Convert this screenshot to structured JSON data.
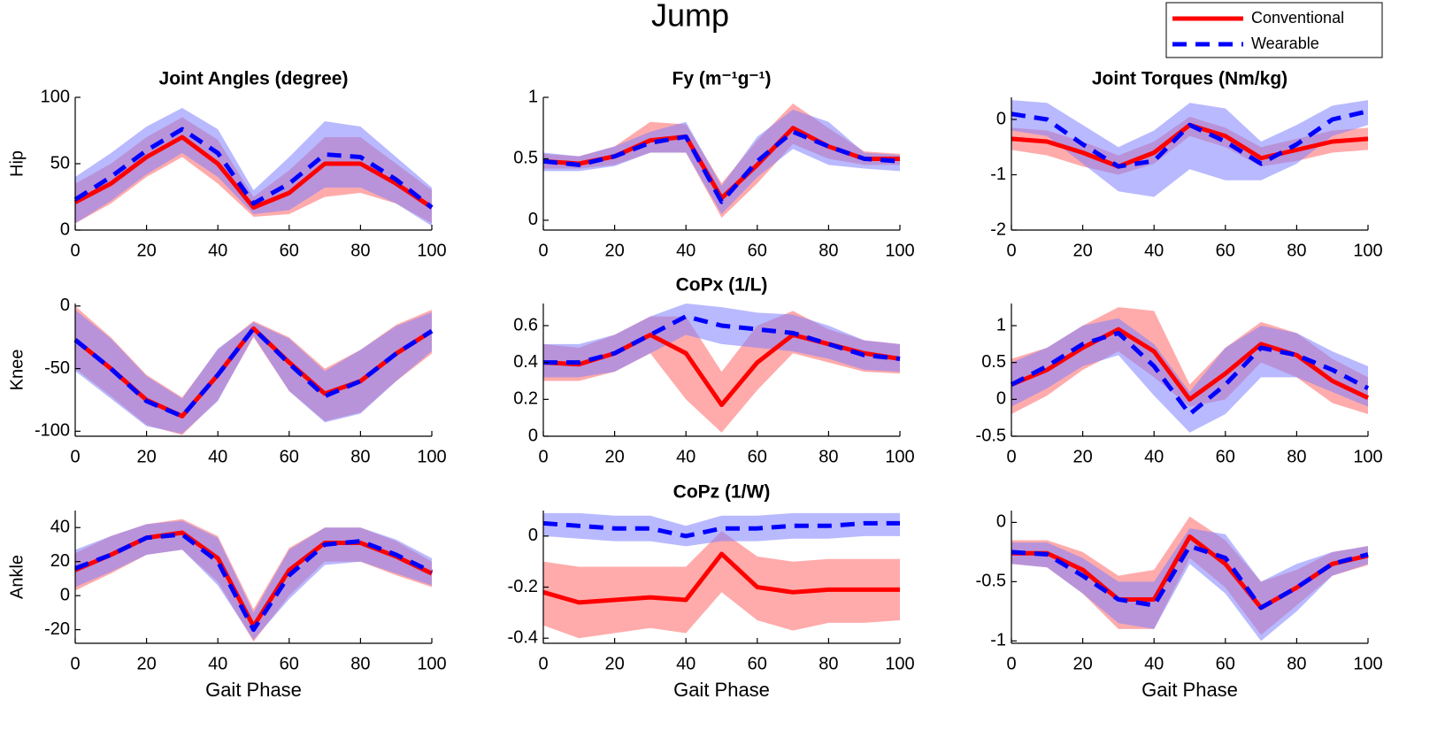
{
  "title": "Jump",
  "chart_data": [
    {
      "type": "line",
      "title": "Joint Angles (degree)",
      "ylabel": "Hip",
      "x": [
        0,
        10,
        20,
        30,
        40,
        50,
        60,
        70,
        80,
        90,
        100
      ],
      "xlim": [
        0,
        100
      ],
      "xticks": [
        0,
        20,
        40,
        60,
        80,
        100
      ],
      "ylim": [
        0,
        100
      ],
      "yticks": [
        0,
        50,
        100
      ],
      "series": [
        {
          "name": "Conventional",
          "color": "#ff0000",
          "linestyle": "solid",
          "values": [
            21,
            35,
            55,
            70,
            50,
            17,
            28,
            50,
            50,
            35,
            17
          ],
          "lower": [
            5,
            20,
            40,
            55,
            35,
            10,
            12,
            25,
            28,
            20,
            5
          ],
          "upper": [
            35,
            50,
            70,
            85,
            68,
            25,
            45,
            70,
            70,
            50,
            30
          ]
        },
        {
          "name": "Wearable",
          "color": "#0000ff",
          "linestyle": "dashed",
          "values": [
            23,
            40,
            60,
            76,
            58,
            20,
            35,
            57,
            55,
            38,
            17
          ],
          "lower": [
            5,
            22,
            42,
            58,
            40,
            12,
            15,
            32,
            32,
            20,
            3
          ],
          "upper": [
            40,
            58,
            78,
            92,
            76,
            30,
            55,
            82,
            78,
            55,
            32
          ]
        }
      ]
    },
    {
      "type": "line",
      "title": "Fy (m⁻¹g⁻¹)",
      "x": [
        0,
        10,
        20,
        30,
        40,
        50,
        60,
        70,
        80,
        90,
        100
      ],
      "xlim": [
        0,
        100
      ],
      "xticks": [
        0,
        20,
        40,
        60,
        80,
        100
      ],
      "ylim": [
        -0.08,
        1
      ],
      "yticks": [
        0,
        0.5,
        1
      ],
      "series": [
        {
          "name": "Conventional",
          "color": "#ff0000",
          "linestyle": "solid",
          "values": [
            0.48,
            0.46,
            0.52,
            0.65,
            0.68,
            0.18,
            0.45,
            0.75,
            0.6,
            0.5,
            0.5
          ],
          "lower": [
            0.42,
            0.42,
            0.45,
            0.55,
            0.55,
            0.02,
            0.3,
            0.62,
            0.5,
            0.45,
            0.45
          ],
          "upper": [
            0.54,
            0.52,
            0.6,
            0.8,
            0.78,
            0.3,
            0.65,
            0.95,
            0.75,
            0.56,
            0.54
          ]
        },
        {
          "name": "Wearable",
          "color": "#0000ff",
          "linestyle": "dashed",
          "values": [
            0.48,
            0.45,
            0.52,
            0.63,
            0.68,
            0.15,
            0.48,
            0.72,
            0.6,
            0.5,
            0.48
          ],
          "lower": [
            0.4,
            0.4,
            0.44,
            0.55,
            0.55,
            0.05,
            0.35,
            0.58,
            0.45,
            0.42,
            0.4
          ],
          "upper": [
            0.55,
            0.52,
            0.6,
            0.72,
            0.8,
            0.28,
            0.68,
            0.9,
            0.8,
            0.55,
            0.53
          ]
        }
      ]
    },
    {
      "type": "line",
      "title": "Joint Torques (Nm/kg)",
      "x": [
        0,
        10,
        20,
        30,
        40,
        50,
        60,
        70,
        80,
        90,
        100
      ],
      "xlim": [
        0,
        100
      ],
      "xticks": [
        0,
        20,
        40,
        60,
        80,
        100
      ],
      "ylim": [
        -2,
        0.4
      ],
      "yticks": [
        -2,
        -1,
        0
      ],
      "series": [
        {
          "name": "Conventional",
          "color": "#ff0000",
          "linestyle": "solid",
          "values": [
            -0.35,
            -0.4,
            -0.6,
            -0.85,
            -0.6,
            -0.1,
            -0.3,
            -0.7,
            -0.55,
            -0.4,
            -0.35
          ],
          "lower": [
            -0.55,
            -0.65,
            -0.85,
            -1.0,
            -0.8,
            -0.3,
            -0.5,
            -0.85,
            -0.75,
            -0.6,
            -0.55
          ],
          "upper": [
            -0.15,
            -0.2,
            -0.4,
            -0.65,
            -0.4,
            0.05,
            -0.15,
            -0.5,
            -0.35,
            -0.2,
            -0.15
          ]
        },
        {
          "name": "Wearable",
          "color": "#0000ff",
          "linestyle": "dashed",
          "values": [
            0.1,
            0.0,
            -0.45,
            -0.85,
            -0.75,
            -0.1,
            -0.4,
            -0.8,
            -0.45,
            0.0,
            0.15
          ],
          "lower": [
            -0.2,
            -0.3,
            -0.8,
            -1.3,
            -1.4,
            -0.9,
            -1.1,
            -1.1,
            -0.8,
            -0.3,
            -0.1
          ],
          "upper": [
            0.35,
            0.3,
            -0.1,
            -0.5,
            -0.2,
            0.3,
            0.2,
            -0.4,
            -0.1,
            0.25,
            0.35
          ]
        }
      ]
    },
    {
      "type": "line",
      "ylabel": "Knee",
      "x": [
        0,
        10,
        20,
        30,
        40,
        50,
        60,
        70,
        80,
        90,
        100
      ],
      "xlim": [
        0,
        100
      ],
      "xticks": [
        0,
        20,
        40,
        60,
        80,
        100
      ],
      "ylim": [
        -104,
        2
      ],
      "yticks": [
        -100,
        -50,
        0
      ],
      "series": [
        {
          "name": "Conventional",
          "color": "#ff0000",
          "linestyle": "solid",
          "values": [
            -27,
            -50,
            -75,
            -88,
            -55,
            -18,
            -45,
            -70,
            -60,
            -38,
            -20
          ],
          "lower": [
            -50,
            -72,
            -95,
            -103,
            -75,
            -25,
            -68,
            -92,
            -85,
            -60,
            -38
          ],
          "upper": [
            0,
            -25,
            -55,
            -73,
            -35,
            -12,
            -25,
            -50,
            -35,
            -15,
            -3
          ]
        },
        {
          "name": "Wearable",
          "color": "#0000ff",
          "linestyle": "dashed",
          "values": [
            -27,
            -50,
            -76,
            -88,
            -55,
            -18,
            -46,
            -72,
            -60,
            -38,
            -20
          ],
          "lower": [
            -52,
            -74,
            -96,
            -102,
            -76,
            -24,
            -68,
            -93,
            -86,
            -60,
            -36
          ],
          "upper": [
            -3,
            -26,
            -56,
            -74,
            -34,
            -13,
            -26,
            -52,
            -35,
            -16,
            -5
          ]
        }
      ]
    },
    {
      "type": "line",
      "title": "CoPx (1/L)",
      "x": [
        0,
        10,
        20,
        30,
        40,
        50,
        60,
        70,
        80,
        90,
        100
      ],
      "xlim": [
        0,
        100
      ],
      "xticks": [
        0,
        20,
        40,
        60,
        80,
        100
      ],
      "ylim": [
        0,
        0.72
      ],
      "yticks": [
        0,
        0.2,
        0.4,
        0.6
      ],
      "series": [
        {
          "name": "Conventional",
          "color": "#ff0000",
          "linestyle": "solid",
          "values": [
            0.4,
            0.39,
            0.45,
            0.55,
            0.45,
            0.17,
            0.4,
            0.55,
            0.5,
            0.45,
            0.42
          ],
          "lower": [
            0.3,
            0.3,
            0.35,
            0.45,
            0.2,
            0.02,
            0.25,
            0.45,
            0.4,
            0.35,
            0.34
          ],
          "upper": [
            0.5,
            0.48,
            0.55,
            0.65,
            0.65,
            0.35,
            0.6,
            0.68,
            0.58,
            0.52,
            0.5
          ]
        },
        {
          "name": "Wearable",
          "color": "#0000ff",
          "linestyle": "dashed",
          "values": [
            0.4,
            0.4,
            0.45,
            0.55,
            0.65,
            0.6,
            0.58,
            0.56,
            0.5,
            0.44,
            0.42
          ],
          "lower": [
            0.32,
            0.32,
            0.35,
            0.45,
            0.55,
            0.5,
            0.48,
            0.46,
            0.42,
            0.36,
            0.35
          ],
          "upper": [
            0.5,
            0.5,
            0.55,
            0.65,
            0.72,
            0.7,
            0.67,
            0.66,
            0.6,
            0.52,
            0.5
          ]
        }
      ]
    },
    {
      "type": "line",
      "x": [
        0,
        10,
        20,
        30,
        40,
        50,
        60,
        70,
        80,
        90,
        100
      ],
      "xlim": [
        0,
        100
      ],
      "xticks": [
        0,
        20,
        40,
        60,
        80,
        100
      ],
      "ylim": [
        -0.5,
        1.3
      ],
      "yticks": [
        -0.5,
        0,
        0.5,
        1
      ],
      "series": [
        {
          "name": "Conventional",
          "color": "#ff0000",
          "linestyle": "solid",
          "values": [
            0.2,
            0.4,
            0.7,
            0.95,
            0.65,
            0.0,
            0.35,
            0.75,
            0.6,
            0.25,
            0.02
          ],
          "lower": [
            -0.2,
            0.05,
            0.4,
            0.65,
            0.3,
            -0.1,
            0.0,
            0.5,
            0.3,
            -0.05,
            -0.2
          ],
          "upper": [
            0.55,
            0.7,
            1.0,
            1.25,
            1.2,
            0.2,
            0.7,
            1.05,
            0.9,
            0.55,
            0.3
          ]
        },
        {
          "name": "Wearable",
          "color": "#0000ff",
          "linestyle": "dashed",
          "values": [
            0.2,
            0.45,
            0.75,
            0.9,
            0.45,
            -0.2,
            0.2,
            0.7,
            0.6,
            0.4,
            0.15
          ],
          "lower": [
            -0.1,
            0.15,
            0.45,
            0.6,
            0.05,
            -0.45,
            -0.2,
            0.3,
            0.3,
            0.1,
            -0.1
          ],
          "upper": [
            0.5,
            0.7,
            1.0,
            1.1,
            0.75,
            0.1,
            0.7,
            1.0,
            0.9,
            0.65,
            0.45
          ]
        }
      ]
    },
    {
      "type": "line",
      "ylabel": "Ankle",
      "xlabel": "Gait Phase",
      "x": [
        0,
        10,
        20,
        30,
        40,
        50,
        60,
        70,
        80,
        90,
        100
      ],
      "xlim": [
        0,
        100
      ],
      "xticks": [
        0,
        20,
        40,
        60,
        80,
        100
      ],
      "ylim": [
        -28,
        50
      ],
      "yticks": [
        -20,
        0,
        20,
        40
      ],
      "series": [
        {
          "name": "Conventional",
          "color": "#ff0000",
          "linestyle": "solid",
          "values": [
            15,
            24,
            34,
            37,
            22,
            -18,
            15,
            31,
            31,
            23,
            13
          ],
          "lower": [
            3,
            13,
            24,
            27,
            8,
            -27,
            0,
            20,
            20,
            12,
            5
          ],
          "upper": [
            25,
            35,
            42,
            45,
            35,
            -8,
            28,
            40,
            40,
            32,
            20
          ]
        },
        {
          "name": "Wearable",
          "color": "#0000ff",
          "linestyle": "dashed",
          "values": [
            16,
            24,
            34,
            36,
            20,
            -20,
            12,
            30,
            32,
            24,
            14
          ],
          "lower": [
            5,
            14,
            24,
            27,
            6,
            -26,
            -2,
            18,
            20,
            13,
            6
          ],
          "upper": [
            27,
            35,
            42,
            44,
            34,
            -10,
            27,
            40,
            40,
            33,
            22
          ]
        }
      ]
    },
    {
      "type": "line",
      "title": "CoPz (1/W)",
      "xlabel": "Gait Phase",
      "x": [
        0,
        10,
        20,
        30,
        40,
        50,
        60,
        70,
        80,
        90,
        100
      ],
      "xlim": [
        0,
        100
      ],
      "xticks": [
        0,
        20,
        40,
        60,
        80,
        100
      ],
      "ylim": [
        -0.42,
        0.1
      ],
      "yticks": [
        -0.4,
        -0.2,
        0
      ],
      "series": [
        {
          "name": "Conventional",
          "color": "#ff0000",
          "linestyle": "solid",
          "values": [
            -0.22,
            -0.26,
            -0.25,
            -0.24,
            -0.25,
            -0.07,
            -0.2,
            -0.22,
            -0.21,
            -0.21,
            -0.21
          ],
          "lower": [
            -0.35,
            -0.4,
            -0.38,
            -0.36,
            -0.38,
            -0.22,
            -0.33,
            -0.37,
            -0.34,
            -0.34,
            -0.33
          ],
          "upper": [
            -0.1,
            -0.12,
            -0.12,
            -0.12,
            -0.12,
            0.02,
            -0.08,
            -0.1,
            -0.09,
            -0.09,
            -0.09
          ]
        },
        {
          "name": "Wearable",
          "color": "#0000ff",
          "linestyle": "dashed",
          "values": [
            0.05,
            0.04,
            0.03,
            0.03,
            0.0,
            0.03,
            0.03,
            0.04,
            0.04,
            0.05,
            0.05
          ],
          "lower": [
            0.0,
            -0.01,
            -0.02,
            -0.02,
            -0.04,
            -0.02,
            -0.02,
            -0.01,
            -0.01,
            0.0,
            0.0
          ],
          "upper": [
            0.09,
            0.09,
            0.08,
            0.08,
            0.04,
            0.08,
            0.08,
            0.09,
            0.09,
            0.09,
            0.09
          ]
        }
      ]
    },
    {
      "type": "line",
      "xlabel": "Gait Phase",
      "x": [
        0,
        10,
        20,
        30,
        40,
        50,
        60,
        70,
        80,
        90,
        100
      ],
      "xlim": [
        0,
        100
      ],
      "xticks": [
        0,
        20,
        40,
        60,
        80,
        100
      ],
      "ylim": [
        -1.02,
        0.1
      ],
      "yticks": [
        -1,
        -0.5,
        0
      ],
      "series": [
        {
          "name": "Conventional",
          "color": "#ff0000",
          "linestyle": "solid",
          "values": [
            -0.26,
            -0.26,
            -0.4,
            -0.65,
            -0.65,
            -0.12,
            -0.35,
            -0.72,
            -0.55,
            -0.35,
            -0.28
          ],
          "lower": [
            -0.35,
            -0.38,
            -0.6,
            -0.9,
            -0.9,
            -0.3,
            -0.55,
            -0.95,
            -0.7,
            -0.45,
            -0.36
          ],
          "upper": [
            -0.15,
            -0.15,
            -0.25,
            -0.45,
            -0.4,
            0.05,
            -0.15,
            -0.5,
            -0.4,
            -0.25,
            -0.2
          ]
        },
        {
          "name": "Wearable",
          "color": "#0000ff",
          "linestyle": "dashed",
          "values": [
            -0.25,
            -0.27,
            -0.45,
            -0.65,
            -0.7,
            -0.2,
            -0.3,
            -0.72,
            -0.55,
            -0.35,
            -0.27
          ],
          "lower": [
            -0.35,
            -0.38,
            -0.6,
            -0.85,
            -0.9,
            -0.35,
            -0.6,
            -1.0,
            -0.75,
            -0.45,
            -0.35
          ],
          "upper": [
            -0.17,
            -0.17,
            -0.3,
            -0.5,
            -0.5,
            -0.05,
            -0.1,
            -0.5,
            -0.35,
            -0.25,
            -0.2
          ]
        }
      ]
    }
  ]
}
